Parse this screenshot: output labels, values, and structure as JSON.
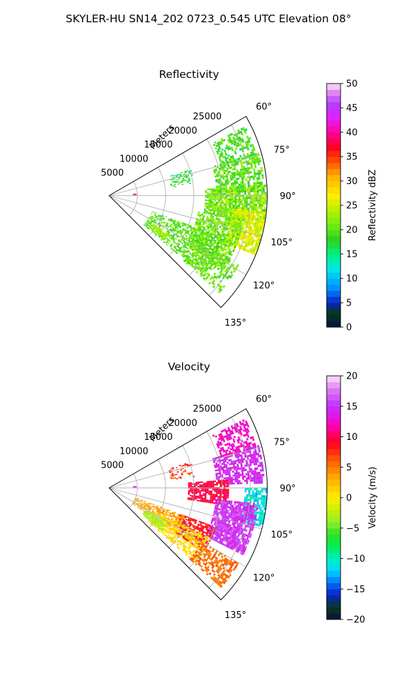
{
  "figure": {
    "title": "SKYLER-HU  SN14_202  0723_0.545 UTC Elevation 08°"
  },
  "colors": {
    "grid": "#b0b0b0",
    "frame": "#000000"
  },
  "chart_data": [
    {
      "type": "heatmap",
      "projection": "polar-sector",
      "title": "Reflectivity",
      "radial_label": "Meters",
      "theta_range_deg": [
        60,
        135
      ],
      "theta_ticks": [
        60,
        75,
        90,
        105,
        120,
        135
      ],
      "theta_tick_labels": [
        "60°",
        "75°",
        "90°",
        "105°",
        "120°",
        "135°"
      ],
      "r_range": [
        0,
        28000
      ],
      "r_ticks": [
        5000,
        10000,
        15000,
        20000,
        25000
      ],
      "r_tick_labels": [
        "5000",
        "10000",
        "15000",
        "20000",
        "25000"
      ],
      "grid": true,
      "colorbar": {
        "label": "Reflectivity dBZ",
        "range": [
          0,
          50
        ],
        "ticks": [
          0,
          5,
          10,
          15,
          20,
          25,
          30,
          35,
          40,
          45,
          50
        ],
        "tick_labels": [
          "0",
          "5",
          "10",
          "15",
          "20",
          "25",
          "30",
          "35",
          "40",
          "45",
          "50"
        ]
      },
      "colormap": [
        {
          "v": 0,
          "c": "#0a1040"
        },
        {
          "v": 3,
          "c": "#063a1e"
        },
        {
          "v": 5,
          "c": "#0a20c8"
        },
        {
          "v": 8,
          "c": "#0090ff"
        },
        {
          "v": 12,
          "c": "#00e8e8"
        },
        {
          "v": 15,
          "c": "#00f080"
        },
        {
          "v": 18,
          "c": "#30d020"
        },
        {
          "v": 21,
          "c": "#70ee10"
        },
        {
          "v": 24,
          "c": "#b8f000"
        },
        {
          "v": 27,
          "c": "#ffee00"
        },
        {
          "v": 31,
          "c": "#ffb000"
        },
        {
          "v": 34,
          "c": "#ff5000"
        },
        {
          "v": 37,
          "c": "#ff0020"
        },
        {
          "v": 40,
          "c": "#ff00a0"
        },
        {
          "v": 43,
          "c": "#e020ff"
        },
        {
          "v": 46,
          "c": "#b040ff"
        },
        {
          "v": 48,
          "c": "#e080f0"
        },
        {
          "v": 50,
          "c": "#fbe6fb"
        }
      ],
      "echo_regions": [
        {
          "theta": [
            63,
            74
          ],
          "r": [
            20500,
            26800
          ],
          "value": [
            16,
            22
          ],
          "density": 0.55
        },
        {
          "theta": [
            74,
            88
          ],
          "r": [
            19000,
            27500
          ],
          "value": [
            17,
            23
          ],
          "density": 0.65
        },
        {
          "theta": [
            86,
            100
          ],
          "r": [
            17000,
            27800
          ],
          "value": [
            18,
            25
          ],
          "density": 0.85
        },
        {
          "theta": [
            96,
            112
          ],
          "r": [
            22000,
            27800
          ],
          "value": [
            22,
            28
          ],
          "density": 0.85
        },
        {
          "theta": [
            100,
            122
          ],
          "r": [
            16000,
            24000
          ],
          "value": [
            18,
            24
          ],
          "density": 0.7
        },
        {
          "theta": [
            110,
            130
          ],
          "r": [
            8000,
            22000
          ],
          "value": [
            17,
            23
          ],
          "density": 0.55
        },
        {
          "theta": [
            118,
            131
          ],
          "r": [
            17500,
            26000
          ],
          "value": [
            18,
            23
          ],
          "density": 0.45
        },
        {
          "theta": [
            123,
            128
          ],
          "r": [
            9000,
            12500
          ],
          "value": [
            21,
            25
          ],
          "density": 0.9
        },
        {
          "theta": [
            72,
            82
          ],
          "r": [
            11000,
            15000
          ],
          "value": [
            15,
            20
          ],
          "density": 0.3
        },
        {
          "theta": [
            86,
            90
          ],
          "r": [
            4200,
            4600
          ],
          "value": [
            35,
            40
          ],
          "density": 1.0
        }
      ]
    },
    {
      "type": "heatmap",
      "projection": "polar-sector",
      "title": "Velocity",
      "radial_label": "Meters",
      "theta_range_deg": [
        60,
        135
      ],
      "theta_ticks": [
        60,
        75,
        90,
        105,
        120,
        135
      ],
      "theta_tick_labels": [
        "60°",
        "75°",
        "90°",
        "105°",
        "120°",
        "135°"
      ],
      "r_range": [
        0,
        28000
      ],
      "r_ticks": [
        5000,
        10000,
        15000,
        20000,
        25000
      ],
      "r_tick_labels": [
        "5000",
        "10000",
        "15000",
        "20000",
        "25000"
      ],
      "grid": true,
      "colorbar": {
        "label": "Velocity (m/s)",
        "range": [
          -20,
          20
        ],
        "ticks": [
          -20,
          -15,
          -10,
          -5,
          0,
          5,
          10,
          15,
          20
        ],
        "tick_labels": [
          "−20",
          "−15",
          "−10",
          "−5",
          "0",
          "5",
          "10",
          "15",
          "20"
        ]
      },
      "colormap": [
        {
          "v": -20,
          "c": "#0a1040"
        },
        {
          "v": -18,
          "c": "#063a1e"
        },
        {
          "v": -16,
          "c": "#0a20c8"
        },
        {
          "v": -14,
          "c": "#0070ff"
        },
        {
          "v": -12,
          "c": "#00d8ff"
        },
        {
          "v": -10,
          "c": "#00f0c0"
        },
        {
          "v": -8,
          "c": "#00f050"
        },
        {
          "v": -6,
          "c": "#30e020"
        },
        {
          "v": -4,
          "c": "#90f030"
        },
        {
          "v": -2,
          "c": "#c8f000"
        },
        {
          "v": 0,
          "c": "#ffee00"
        },
        {
          "v": 3,
          "c": "#ffb000"
        },
        {
          "v": 6,
          "c": "#ff6000"
        },
        {
          "v": 9,
          "c": "#ff0020"
        },
        {
          "v": 12,
          "c": "#ff00c0"
        },
        {
          "v": 15,
          "c": "#c030ff"
        },
        {
          "v": 18,
          "c": "#e080f0"
        },
        {
          "v": 20,
          "c": "#fbe6fb"
        }
      ],
      "echo_regions": [
        {
          "theta": [
            63,
            74
          ],
          "r": [
            20500,
            26800
          ],
          "value": [
            11,
            14
          ],
          "density": 0.55
        },
        {
          "theta": [
            74,
            88
          ],
          "r": [
            19000,
            27500
          ],
          "value": [
            13,
            16
          ],
          "density": 0.65
        },
        {
          "theta": [
            86,
            98
          ],
          "r": [
            14000,
            21000
          ],
          "value": [
            8,
            11
          ],
          "density": 0.8
        },
        {
          "theta": [
            90,
            104
          ],
          "r": [
            24000,
            27800
          ],
          "value": [
            -13,
            -9
          ],
          "density": 0.75
        },
        {
          "theta": [
            96,
            116
          ],
          "r": [
            19000,
            26500
          ],
          "value": [
            13,
            17
          ],
          "density": 0.85
        },
        {
          "theta": [
            110,
            124
          ],
          "r": [
            13000,
            20000
          ],
          "value": [
            7,
            10
          ],
          "density": 0.7
        },
        {
          "theta": [
            110,
            124
          ],
          "r": [
            5000,
            14000
          ],
          "value": [
            2,
            5
          ],
          "density": 0.6
        },
        {
          "theta": [
            116,
            131
          ],
          "r": [
            9000,
            20000
          ],
          "value": [
            0,
            2
          ],
          "density": 0.6
        },
        {
          "theta": [
            121,
            129
          ],
          "r": [
            7500,
            12000
          ],
          "value": [
            -4,
            -2
          ],
          "density": 0.9
        },
        {
          "theta": [
            120,
            131
          ],
          "r": [
            19000,
            26500
          ],
          "value": [
            4,
            7
          ],
          "density": 0.55
        },
        {
          "theta": [
            72,
            82
          ],
          "r": [
            11000,
            15000
          ],
          "value": [
            6,
            9
          ],
          "density": 0.3
        },
        {
          "theta": [
            86,
            90
          ],
          "r": [
            4200,
            4600
          ],
          "value": [
            13,
            15
          ],
          "density": 1.0
        }
      ]
    }
  ]
}
